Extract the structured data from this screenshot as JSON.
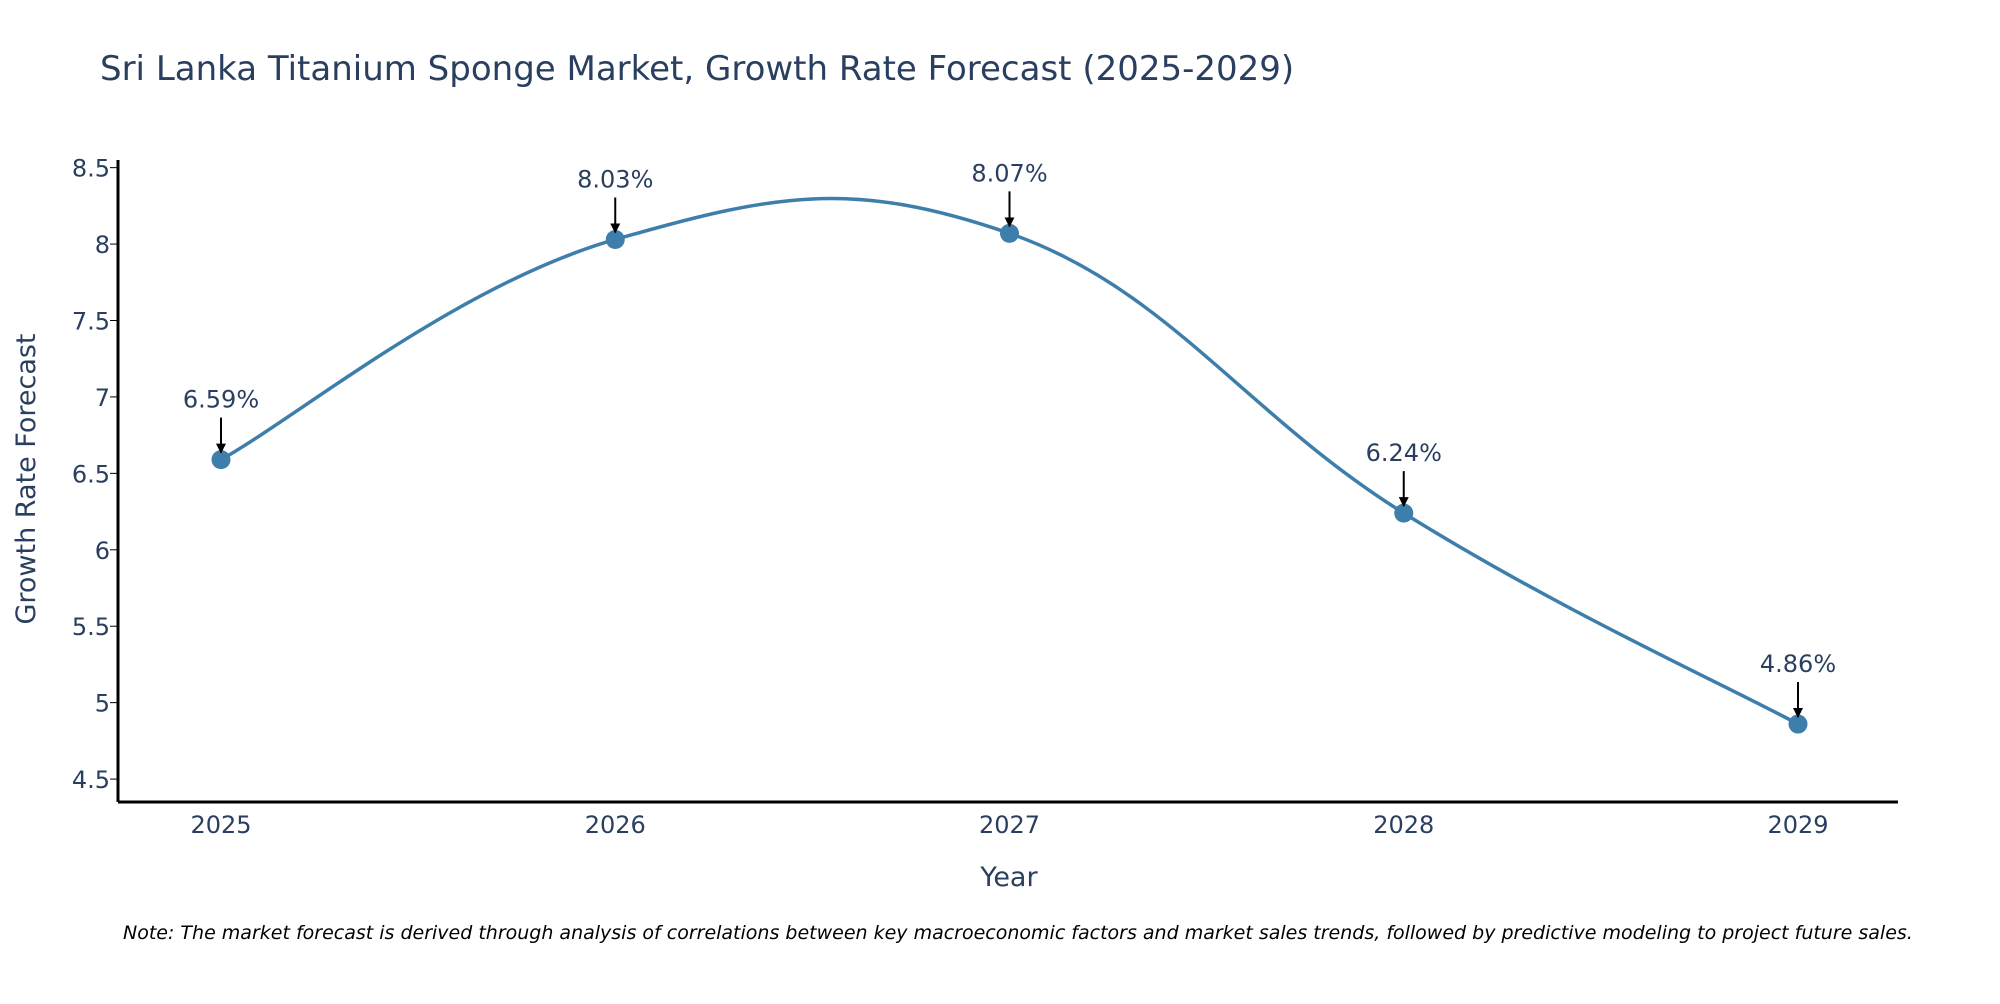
{
  "chart_data": {
    "type": "line",
    "title": "Sri Lanka Titanium Sponge Market, Growth Rate Forecast (2025-2029)",
    "xlabel": "Year",
    "ylabel": "Growth Rate Forecast",
    "categories": [
      "2025",
      "2026",
      "2027",
      "2028",
      "2029"
    ],
    "series": [
      {
        "name": "Growth Rate Forecast",
        "values": [
          6.59,
          8.03,
          8.07,
          6.24,
          4.86
        ],
        "labels": [
          "6.59%",
          "8.03%",
          "8.07%",
          "6.24%",
          "4.86%"
        ]
      }
    ],
    "y_ticks": [
      4.5,
      5,
      5.5,
      6,
      6.5,
      7,
      7.5,
      8,
      8.5
    ],
    "y_tick_labels": [
      "4.5",
      "5",
      "5.5",
      "6",
      "6.5",
      "7",
      "7.5",
      "8",
      "8.5"
    ],
    "ylim": [
      4.35,
      8.55
    ],
    "grid": false,
    "line_shape": "spline",
    "colors": {
      "line": "#3d7eab",
      "marker": "#3d7eab",
      "text": "#2a3f5f",
      "axis": "#000000",
      "arrow": "#000000"
    }
  },
  "note": "Note: The market forecast is derived through analysis of correlations between key macroeconomic factors and market sales trends, followed by predictive modeling to project future sales."
}
